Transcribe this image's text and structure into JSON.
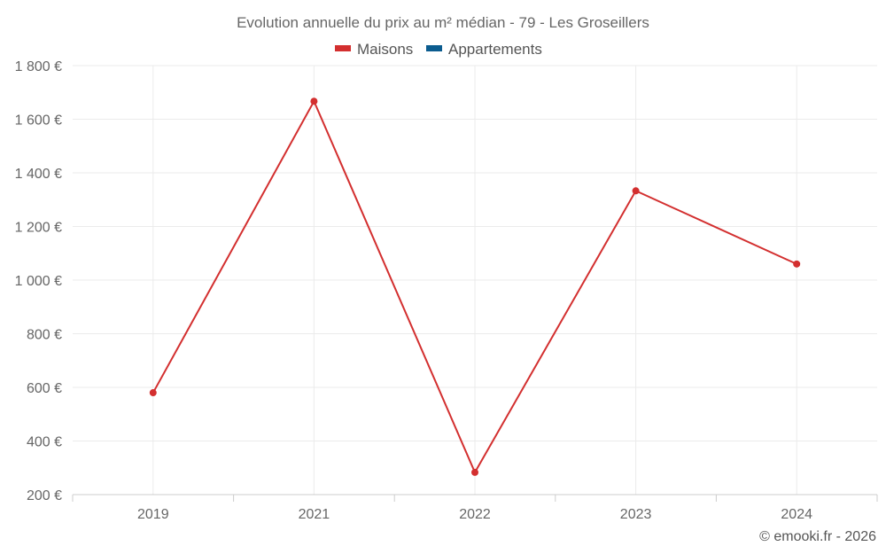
{
  "chart_data": {
    "type": "line",
    "title": "Evolution annuelle du prix au m² médian - 79 - Les Groseillers",
    "categories": [
      "2019",
      "2021",
      "2022",
      "2023",
      "2024"
    ],
    "series": [
      {
        "name": "Maisons",
        "color": "#d32f2f",
        "values": [
          580,
          1667,
          283,
          1333,
          1060
        ]
      },
      {
        "name": "Appartements",
        "color": "#0b5c8f",
        "values": [
          null,
          null,
          null,
          null,
          null
        ]
      }
    ],
    "ylim": [
      200,
      1800
    ],
    "yticks": [
      200,
      400,
      600,
      800,
      1000,
      1200,
      1400,
      1600,
      1800
    ],
    "ytick_labels": [
      "200 €",
      "400 €",
      "600 €",
      "800 €",
      "1 000 €",
      "1 200 €",
      "1 400 €",
      "1 600 €",
      "1 800 €"
    ],
    "grid": true,
    "legend_position": "top-center",
    "xlabel": "",
    "ylabel": ""
  },
  "credit": "© emooki.fr - 2026"
}
